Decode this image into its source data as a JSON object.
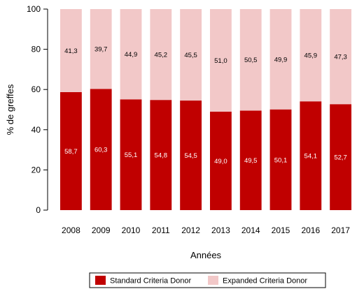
{
  "chart_data": {
    "type": "bar",
    "stacked": true,
    "xlabel": "Années",
    "ylabel": "% de greffes",
    "ylim": [
      0,
      100
    ],
    "yticks": [
      0,
      20,
      40,
      60,
      80,
      100
    ],
    "grid": false,
    "legend_position": "bottom",
    "categories": [
      "2008",
      "2009",
      "2010",
      "2011",
      "2012",
      "2013",
      "2014",
      "2015",
      "2016",
      "2017"
    ],
    "series": [
      {
        "name": "Standard Criteria Donor",
        "color": "#c00000",
        "label_color": "#ffffff",
        "values": [
          58.7,
          60.3,
          55.1,
          54.8,
          54.5,
          49.0,
          49.5,
          50.1,
          54.1,
          52.7
        ],
        "labels": [
          "58,7",
          "60,3",
          "55,1",
          "54,8",
          "54,5",
          "49,0",
          "49,5",
          "50,1",
          "54,1",
          "52,7"
        ]
      },
      {
        "name": "Expanded Criteria Donor",
        "color": "#f2c8c8",
        "label_color": "#000000",
        "values": [
          41.3,
          39.7,
          44.9,
          45.2,
          45.5,
          51.0,
          50.5,
          49.9,
          45.9,
          47.3
        ],
        "labels": [
          "41,3",
          "39,7",
          "44,9",
          "45,2",
          "45,5",
          "51,0",
          "50,5",
          "49,9",
          "45,9",
          "47,3"
        ]
      }
    ]
  }
}
